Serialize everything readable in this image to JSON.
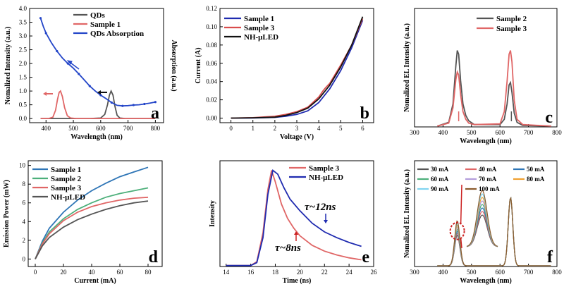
{
  "chart_data": [
    {
      "id": "a",
      "type": "line",
      "panel_label": "a",
      "xlabel": "Wavelength (nm)",
      "ylabel": "Nomalized Intensity (a.u.)",
      "ylabel2": "Absorption (a.u.)",
      "xlim": [
        340,
        830
      ],
      "ylim": [
        -0.15,
        4.0
      ],
      "xticks": [
        400,
        500,
        600,
        700,
        800
      ],
      "yticks": [
        0.0,
        0.5,
        1.0,
        1.5,
        2.0,
        2.5,
        3.0,
        3.5,
        4.0
      ],
      "ytick_labels": [
        "0.0",
        "0.5",
        "1.0",
        "1.5",
        "2.0",
        "2.5",
        "3.0",
        "3.5",
        "4.0"
      ],
      "legend": [
        "QDs",
        "Sample 1",
        "QDs Absorption"
      ],
      "series": [
        {
          "name": "QDs",
          "color": "#555555",
          "x": [
            380,
            560,
            600,
            615,
            625,
            632,
            638,
            645,
            652,
            660,
            670,
            690,
            800
          ],
          "y": [
            0,
            0,
            0.02,
            0.15,
            0.5,
            0.85,
            1.0,
            0.85,
            0.45,
            0.12,
            0.02,
            0,
            0
          ]
        },
        {
          "name": "Sample 1",
          "color": "#e06666",
          "x": [
            380,
            410,
            425,
            435,
            442,
            448,
            453,
            460,
            468,
            478,
            490,
            510,
            800
          ],
          "y": [
            0,
            0,
            0.05,
            0.3,
            0.7,
            0.95,
            1.0,
            0.8,
            0.4,
            0.1,
            0.02,
            0,
            0
          ]
        },
        {
          "name": "QDs Absorption",
          "color": "#2345c8",
          "x": [
            380,
            390,
            400,
            420,
            440,
            460,
            480,
            500,
            520,
            540,
            560,
            580,
            600,
            620,
            640,
            660,
            680,
            700,
            720,
            740,
            760,
            780,
            800
          ],
          "y": [
            3.65,
            3.35,
            3.1,
            2.75,
            2.45,
            2.2,
            2.0,
            1.83,
            1.62,
            1.4,
            1.18,
            1.0,
            0.85,
            0.72,
            0.58,
            0.48,
            0.46,
            0.47,
            0.49,
            0.5,
            0.53,
            0.56,
            0.6
          ]
        }
      ]
    },
    {
      "id": "b",
      "type": "line",
      "panel_label": "b",
      "xlabel": "Voltage (V)",
      "ylabel": "Current (A)",
      "xlim": [
        -0.5,
        6.5
      ],
      "ylim": [
        -0.005,
        0.12
      ],
      "xticks": [
        0,
        1,
        2,
        3,
        4,
        5,
        6
      ],
      "yticks": [
        0.0,
        0.02,
        0.04,
        0.06,
        0.08,
        0.1,
        0.12
      ],
      "ytick_labels": [
        "0.00",
        "0.02",
        "0.04",
        "0.06",
        "0.08",
        "0.10",
        "0.12"
      ],
      "legend": [
        "Sample 1",
        "Sample 3",
        "NH-μLED"
      ],
      "series": [
        {
          "name": "Sample 1",
          "color": "#1f2bb0",
          "x": [
            0,
            1,
            2,
            2.5,
            3,
            3.5,
            4,
            4.5,
            5,
            5.5,
            6
          ],
          "y": [
            0,
            0.0002,
            0.0008,
            0.002,
            0.004,
            0.008,
            0.017,
            0.032,
            0.052,
            0.077,
            0.107
          ]
        },
        {
          "name": "Sample 3",
          "color": "#d94c4c",
          "x": [
            0,
            1,
            2,
            2.5,
            3,
            3.5,
            4,
            4.2,
            4.3,
            4.5,
            5,
            5.5,
            6
          ],
          "y": [
            0,
            0.0005,
            0.002,
            0.004,
            0.007,
            0.012,
            0.023,
            0.03,
            0.033,
            0.038,
            0.058,
            0.08,
            0.109
          ]
        },
        {
          "name": "NH-μLED",
          "color": "#111111",
          "x": [
            0,
            1,
            2,
            2.5,
            3,
            3.5,
            4,
            4.5,
            5,
            5.5,
            6
          ],
          "y": [
            0,
            0.0003,
            0.001,
            0.003,
            0.006,
            0.011,
            0.021,
            0.036,
            0.056,
            0.08,
            0.111
          ]
        }
      ]
    },
    {
      "id": "c",
      "type": "line",
      "panel_label": "c",
      "xlabel": "Wavelength (nm)",
      "ylabel": "Nomalized EL Intensity (a.u.)",
      "xlim": [
        300,
        800
      ],
      "ylim": [
        0,
        1.55
      ],
      "xticks": [
        300,
        400,
        500,
        600,
        700,
        800
      ],
      "yticks": [],
      "ytick_labels": [],
      "legend": [
        "Sample 2",
        "Sample 3"
      ],
      "series": [
        {
          "name": "Sample 2",
          "color": "#555555",
          "x": [
            380,
            420,
            435,
            445,
            450,
            455,
            462,
            470,
            480,
            490,
            510,
            600,
            615,
            625,
            632,
            637,
            642,
            650,
            660,
            680,
            780
          ],
          "y": [
            0.01,
            0.06,
            0.3,
            0.8,
            1.0,
            0.95,
            0.6,
            0.3,
            0.15,
            0.08,
            0.03,
            0.03,
            0.1,
            0.3,
            0.55,
            0.58,
            0.45,
            0.18,
            0.06,
            0.02,
            0.01
          ]
        },
        {
          "name": "Sample 3",
          "color": "#e06666",
          "x": [
            380,
            420,
            435,
            445,
            450,
            455,
            462,
            470,
            480,
            490,
            510,
            600,
            615,
            625,
            632,
            637,
            642,
            650,
            660,
            680,
            780
          ],
          "y": [
            0.01,
            0.05,
            0.25,
            0.62,
            0.72,
            0.68,
            0.42,
            0.2,
            0.1,
            0.05,
            0.03,
            0.04,
            0.2,
            0.6,
            0.95,
            1.0,
            0.85,
            0.35,
            0.1,
            0.03,
            0.01
          ]
        }
      ]
    },
    {
      "id": "d",
      "type": "line",
      "panel_label": "d",
      "xlabel": "Current (mA)",
      "ylabel": "Emission Power (mW)",
      "xlim": [
        -5,
        90
      ],
      "ylim": [
        -0.8,
        10.5
      ],
      "xticks": [
        0,
        20,
        40,
        60,
        80
      ],
      "yticks": [
        0,
        2,
        4,
        6,
        8,
        10
      ],
      "ytick_labels": [
        "0",
        "2",
        "4",
        "6",
        "8",
        "10"
      ],
      "legend": [
        "Sample 1",
        "Sample 2",
        "Sample 3",
        "NH-μLED"
      ],
      "series": [
        {
          "name": "Sample 1",
          "color": "#2e75b6",
          "x": [
            0,
            5,
            10,
            20,
            30,
            40,
            50,
            60,
            70,
            80
          ],
          "y": [
            0,
            1.9,
            3.3,
            5.0,
            6.3,
            7.3,
            8.1,
            8.8,
            9.3,
            9.8
          ]
        },
        {
          "name": "Sample 2",
          "color": "#4caf7a",
          "x": [
            0,
            5,
            10,
            20,
            30,
            40,
            50,
            60,
            70,
            80
          ],
          "y": [
            0,
            1.7,
            2.9,
            4.3,
            5.3,
            6.0,
            6.6,
            7.0,
            7.3,
            7.6
          ]
        },
        {
          "name": "Sample 3",
          "color": "#e06666",
          "x": [
            0,
            5,
            10,
            20,
            30,
            40,
            50,
            60,
            70,
            80
          ],
          "y": [
            0,
            1.6,
            2.7,
            4.1,
            5.0,
            5.6,
            6.0,
            6.3,
            6.5,
            6.6
          ]
        },
        {
          "name": "NH-μLED",
          "color": "#555555",
          "x": [
            0,
            5,
            10,
            20,
            30,
            40,
            50,
            60,
            70,
            80
          ],
          "y": [
            0,
            1.4,
            2.3,
            3.4,
            4.2,
            4.8,
            5.3,
            5.7,
            6.0,
            6.2
          ]
        }
      ]
    },
    {
      "id": "e",
      "type": "line",
      "panel_label": "e",
      "xlabel": "Time (ns)",
      "ylabel": "Intensity",
      "xlim": [
        13.5,
        26
      ],
      "ylim": [
        0,
        1.1
      ],
      "xticks": [
        14,
        16,
        18,
        20,
        22,
        24,
        26
      ],
      "yticks": [],
      "ytick_labels": [],
      "legend": [
        "Sample 3",
        "NH-μLED"
      ],
      "annotations": [
        "τ~12ns",
        "τ~8ns"
      ],
      "series": [
        {
          "name": "Sample 3",
          "color": "#e06666",
          "x": [
            14,
            16,
            16.5,
            17,
            17.4,
            17.7,
            18,
            18.5,
            19,
            19.5,
            20,
            21,
            22,
            23,
            24,
            25
          ],
          "y": [
            0.01,
            0.01,
            0.05,
            0.35,
            0.8,
            1.0,
            0.88,
            0.65,
            0.5,
            0.4,
            0.32,
            0.22,
            0.16,
            0.12,
            0.09,
            0.07
          ]
        },
        {
          "name": "NH-μLED",
          "color": "#1f2bb0",
          "x": [
            14,
            16,
            16.5,
            17,
            17.4,
            17.8,
            18.2,
            18.7,
            19.2,
            20,
            21,
            22,
            23,
            24,
            25
          ],
          "y": [
            0.01,
            0.01,
            0.04,
            0.3,
            0.75,
            1.0,
            0.96,
            0.82,
            0.7,
            0.58,
            0.45,
            0.36,
            0.3,
            0.25,
            0.21
          ]
        }
      ]
    },
    {
      "id": "f",
      "type": "line",
      "panel_label": "f",
      "xlabel": "Wavelength (nm)",
      "ylabel": "Nomalized EL Intensity (a.u.)",
      "xlim": [
        300,
        800
      ],
      "ylim": [
        0,
        1.55
      ],
      "xticks": [
        300,
        400,
        500,
        600,
        700,
        800
      ],
      "yticks": [],
      "ytick_labels": [],
      "legend": [
        "30 mA",
        "40 mA",
        "50 mA",
        "60 mA",
        "70 mA",
        "80 mA",
        "90 mA",
        "100 mA"
      ],
      "series": [
        {
          "name": "30 mA",
          "color": "#555555",
          "blue_peak": 0.45
        },
        {
          "name": "40 mA",
          "color": "#e06666",
          "blue_peak": 0.48
        },
        {
          "name": "50 mA",
          "color": "#2e75b6",
          "blue_peak": 0.51
        },
        {
          "name": "60 mA",
          "color": "#4caf7a",
          "blue_peak": 0.54
        },
        {
          "name": "70 mA",
          "color": "#b39ddb",
          "blue_peak": 0.57
        },
        {
          "name": "80 mA",
          "color": "#f0a030",
          "blue_peak": 0.6
        },
        {
          "name": "90 mA",
          "color": "#7fd4f0",
          "blue_peak": 0.63
        },
        {
          "name": "100 mA",
          "color": "#8b5a2b",
          "blue_peak": 0.66
        }
      ],
      "red_peak": 1.0
    }
  ]
}
